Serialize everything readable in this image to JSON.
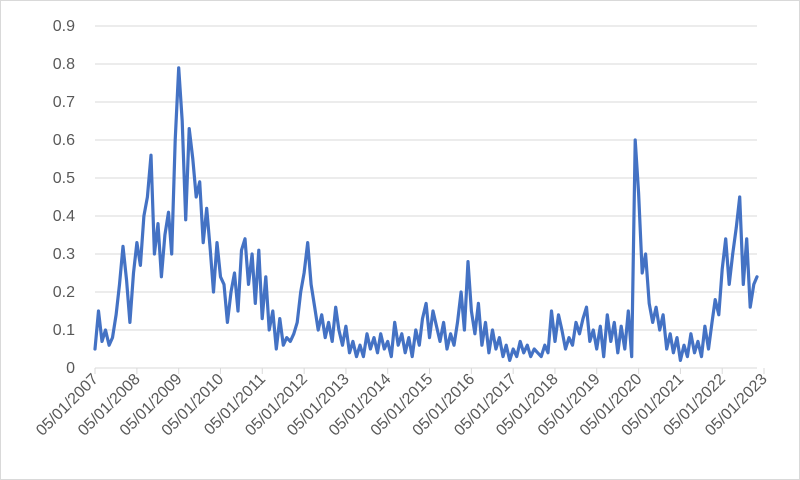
{
  "chart_data": {
    "type": "line",
    "title": "",
    "xlabel": "",
    "ylabel": "",
    "ylim": [
      0,
      0.9
    ],
    "yticks": [
      "0",
      "0.1",
      "0.2",
      "0.3",
      "0.4",
      "0.5",
      "0.6",
      "0.7",
      "0.8",
      "0.9"
    ],
    "xticks": [
      "05/01/2007",
      "05/01/2008",
      "05/01/2009",
      "05/01/2010",
      "05/01/2011",
      "05/01/2012",
      "05/01/2013",
      "05/01/2014",
      "05/01/2015",
      "05/01/2016",
      "05/01/2017",
      "05/01/2018",
      "05/01/2019",
      "05/01/2020",
      "05/01/2021",
      "05/01/2022",
      "05/01/2023"
    ],
    "grid": true,
    "legend": "none",
    "colors": {
      "series": "#4472C4",
      "grid": "#d9d9d9",
      "axis": "#d9d9d9",
      "text": "#595959"
    },
    "series": [
      {
        "values": [
          [
            "2007-05-01",
            0.05
          ],
          [
            "2007-06-01",
            0.15
          ],
          [
            "2007-07-01",
            0.07
          ],
          [
            "2007-08-01",
            0.1
          ],
          [
            "2007-09-01",
            0.06
          ],
          [
            "2007-10-01",
            0.08
          ],
          [
            "2007-11-01",
            0.14
          ],
          [
            "2007-12-01",
            0.22
          ],
          [
            "2008-01-01",
            0.32
          ],
          [
            "2008-02-01",
            0.23
          ],
          [
            "2008-03-01",
            0.12
          ],
          [
            "2008-04-01",
            0.25
          ],
          [
            "2008-05-01",
            0.33
          ],
          [
            "2008-06-01",
            0.27
          ],
          [
            "2008-07-01",
            0.4
          ],
          [
            "2008-08-01",
            0.45
          ],
          [
            "2008-09-01",
            0.56
          ],
          [
            "2008-10-01",
            0.3
          ],
          [
            "2008-11-01",
            0.38
          ],
          [
            "2008-12-01",
            0.24
          ],
          [
            "2009-01-01",
            0.35
          ],
          [
            "2009-02-01",
            0.41
          ],
          [
            "2009-03-01",
            0.3
          ],
          [
            "2009-04-01",
            0.6
          ],
          [
            "2009-05-01",
            0.79
          ],
          [
            "2009-06-01",
            0.65
          ],
          [
            "2009-07-01",
            0.39
          ],
          [
            "2009-08-01",
            0.63
          ],
          [
            "2009-09-01",
            0.55
          ],
          [
            "2009-10-01",
            0.45
          ],
          [
            "2009-11-01",
            0.49
          ],
          [
            "2009-12-01",
            0.33
          ],
          [
            "2010-01-01",
            0.42
          ],
          [
            "2010-02-01",
            0.31
          ],
          [
            "2010-03-01",
            0.2
          ],
          [
            "2010-04-01",
            0.33
          ],
          [
            "2010-05-01",
            0.24
          ],
          [
            "2010-06-01",
            0.22
          ],
          [
            "2010-07-01",
            0.12
          ],
          [
            "2010-08-01",
            0.2
          ],
          [
            "2010-09-01",
            0.25
          ],
          [
            "2010-10-01",
            0.15
          ],
          [
            "2010-11-01",
            0.31
          ],
          [
            "2010-12-01",
            0.34
          ],
          [
            "2011-01-01",
            0.22
          ],
          [
            "2011-02-01",
            0.3
          ],
          [
            "2011-03-01",
            0.17
          ],
          [
            "2011-04-01",
            0.31
          ],
          [
            "2011-05-01",
            0.13
          ],
          [
            "2011-06-01",
            0.24
          ],
          [
            "2011-07-01",
            0.1
          ],
          [
            "2011-08-01",
            0.15
          ],
          [
            "2011-09-01",
            0.05
          ],
          [
            "2011-10-01",
            0.13
          ],
          [
            "2011-11-01",
            0.06
          ],
          [
            "2011-12-01",
            0.08
          ],
          [
            "2012-01-01",
            0.07
          ],
          [
            "2012-02-01",
            0.09
          ],
          [
            "2012-03-01",
            0.12
          ],
          [
            "2012-04-01",
            0.2
          ],
          [
            "2012-05-01",
            0.25
          ],
          [
            "2012-06-01",
            0.33
          ],
          [
            "2012-07-01",
            0.22
          ],
          [
            "2012-08-01",
            0.16
          ],
          [
            "2012-09-01",
            0.1
          ],
          [
            "2012-10-01",
            0.14
          ],
          [
            "2012-11-01",
            0.08
          ],
          [
            "2012-12-01",
            0.12
          ],
          [
            "2013-01-01",
            0.07
          ],
          [
            "2013-02-01",
            0.16
          ],
          [
            "2013-03-01",
            0.1
          ],
          [
            "2013-04-01",
            0.06
          ],
          [
            "2013-05-01",
            0.11
          ],
          [
            "2013-06-01",
            0.04
          ],
          [
            "2013-07-01",
            0.07
          ],
          [
            "2013-08-01",
            0.03
          ],
          [
            "2013-09-01",
            0.06
          ],
          [
            "2013-10-01",
            0.03
          ],
          [
            "2013-11-01",
            0.09
          ],
          [
            "2013-12-01",
            0.05
          ],
          [
            "2014-01-01",
            0.08
          ],
          [
            "2014-02-01",
            0.04
          ],
          [
            "2014-03-01",
            0.09
          ],
          [
            "2014-04-01",
            0.05
          ],
          [
            "2014-05-01",
            0.07
          ],
          [
            "2014-06-01",
            0.03
          ],
          [
            "2014-07-01",
            0.12
          ],
          [
            "2014-08-01",
            0.06
          ],
          [
            "2014-09-01",
            0.09
          ],
          [
            "2014-10-01",
            0.04
          ],
          [
            "2014-11-01",
            0.08
          ],
          [
            "2014-12-01",
            0.03
          ],
          [
            "2015-01-01",
            0.1
          ],
          [
            "2015-02-01",
            0.06
          ],
          [
            "2015-03-01",
            0.13
          ],
          [
            "2015-04-01",
            0.17
          ],
          [
            "2015-05-01",
            0.08
          ],
          [
            "2015-06-01",
            0.15
          ],
          [
            "2015-07-01",
            0.11
          ],
          [
            "2015-08-01",
            0.07
          ],
          [
            "2015-09-01",
            0.12
          ],
          [
            "2015-10-01",
            0.05
          ],
          [
            "2015-11-01",
            0.09
          ],
          [
            "2015-12-01",
            0.06
          ],
          [
            "2016-01-01",
            0.12
          ],
          [
            "2016-02-01",
            0.2
          ],
          [
            "2016-03-01",
            0.1
          ],
          [
            "2016-04-01",
            0.28
          ],
          [
            "2016-05-01",
            0.15
          ],
          [
            "2016-06-01",
            0.09
          ],
          [
            "2016-07-01",
            0.17
          ],
          [
            "2016-08-01",
            0.06
          ],
          [
            "2016-09-01",
            0.12
          ],
          [
            "2016-10-01",
            0.04
          ],
          [
            "2016-11-01",
            0.1
          ],
          [
            "2016-12-01",
            0.05
          ],
          [
            "2017-01-01",
            0.08
          ],
          [
            "2017-02-01",
            0.03
          ],
          [
            "2017-03-01",
            0.06
          ],
          [
            "2017-04-01",
            0.02
          ],
          [
            "2017-05-01",
            0.05
          ],
          [
            "2017-06-01",
            0.03
          ],
          [
            "2017-07-01",
            0.07
          ],
          [
            "2017-08-01",
            0.04
          ],
          [
            "2017-09-01",
            0.06
          ],
          [
            "2017-10-01",
            0.03
          ],
          [
            "2017-11-01",
            0.05
          ],
          [
            "2017-12-01",
            0.04
          ],
          [
            "2018-01-01",
            0.03
          ],
          [
            "2018-02-01",
            0.06
          ],
          [
            "2018-03-01",
            0.04
          ],
          [
            "2018-04-01",
            0.15
          ],
          [
            "2018-05-01",
            0.07
          ],
          [
            "2018-06-01",
            0.14
          ],
          [
            "2018-07-01",
            0.1
          ],
          [
            "2018-08-01",
            0.05
          ],
          [
            "2018-09-01",
            0.08
          ],
          [
            "2018-10-01",
            0.06
          ],
          [
            "2018-11-01",
            0.12
          ],
          [
            "2018-12-01",
            0.09
          ],
          [
            "2019-01-01",
            0.13
          ],
          [
            "2019-02-01",
            0.16
          ],
          [
            "2019-03-01",
            0.07
          ],
          [
            "2019-04-01",
            0.1
          ],
          [
            "2019-05-01",
            0.05
          ],
          [
            "2019-06-01",
            0.11
          ],
          [
            "2019-07-01",
            0.03
          ],
          [
            "2019-08-01",
            0.14
          ],
          [
            "2019-09-01",
            0.07
          ],
          [
            "2019-10-01",
            0.12
          ],
          [
            "2019-11-01",
            0.04
          ],
          [
            "2019-12-01",
            0.11
          ],
          [
            "2020-01-01",
            0.05
          ],
          [
            "2020-02-01",
            0.15
          ],
          [
            "2020-03-01",
            0.03
          ],
          [
            "2020-04-01",
            0.6
          ],
          [
            "2020-05-01",
            0.46
          ],
          [
            "2020-06-01",
            0.25
          ],
          [
            "2020-07-01",
            0.3
          ],
          [
            "2020-08-01",
            0.17
          ],
          [
            "2020-09-01",
            0.12
          ],
          [
            "2020-10-01",
            0.16
          ],
          [
            "2020-11-01",
            0.1
          ],
          [
            "2020-12-01",
            0.14
          ],
          [
            "2021-01-01",
            0.05
          ],
          [
            "2021-02-01",
            0.09
          ],
          [
            "2021-03-01",
            0.04
          ],
          [
            "2021-04-01",
            0.08
          ],
          [
            "2021-05-01",
            0.02
          ],
          [
            "2021-06-01",
            0.06
          ],
          [
            "2021-07-01",
            0.03
          ],
          [
            "2021-08-01",
            0.09
          ],
          [
            "2021-09-01",
            0.04
          ],
          [
            "2021-10-01",
            0.07
          ],
          [
            "2021-11-01",
            0.03
          ],
          [
            "2021-12-01",
            0.11
          ],
          [
            "2022-01-01",
            0.05
          ],
          [
            "2022-02-01",
            0.12
          ],
          [
            "2022-03-01",
            0.18
          ],
          [
            "2022-04-01",
            0.14
          ],
          [
            "2022-05-01",
            0.26
          ],
          [
            "2022-06-01",
            0.34
          ],
          [
            "2022-07-01",
            0.22
          ],
          [
            "2022-08-01",
            0.3
          ],
          [
            "2022-09-01",
            0.37
          ],
          [
            "2022-10-01",
            0.45
          ],
          [
            "2022-11-01",
            0.22
          ],
          [
            "2022-12-01",
            0.34
          ],
          [
            "2023-01-01",
            0.16
          ],
          [
            "2023-02-01",
            0.22
          ],
          [
            "2023-03-01",
            0.24
          ]
        ]
      }
    ]
  }
}
